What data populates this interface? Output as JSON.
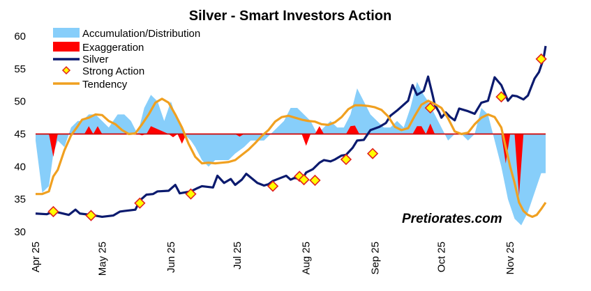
{
  "chart_data": {
    "type": "line",
    "title": "Silver - Smart Investors Action",
    "watermark": "Pretiorates.com",
    "ylim": [
      30,
      60
    ],
    "yticks": [
      30,
      35,
      40,
      45,
      50,
      55,
      60
    ],
    "xlim": [
      0,
      230
    ],
    "xticks": [
      {
        "label": "Apr 25",
        "x": 0
      },
      {
        "label": "May 25",
        "x": 30
      },
      {
        "label": "Jun 25",
        "x": 61
      },
      {
        "label": "Jul 25",
        "x": 91
      },
      {
        "label": "Aug 25",
        "x": 122
      },
      {
        "label": "Sep 25",
        "x": 153
      },
      {
        "label": "Oct 25",
        "x": 183
      },
      {
        "label": "Nov 25",
        "x": 214
      }
    ],
    "baseline": 45,
    "colors": {
      "accumulation": "#87cefa",
      "exaggeration": "#ff0000",
      "silver": "#0b1a6e",
      "tendency": "#f0a020",
      "baseline": "#d00000",
      "marker_fill": "#ffff00",
      "marker_edge": "#e02020"
    },
    "legend": [
      {
        "key": "accumulation",
        "label": "Accumulation/Distribution"
      },
      {
        "key": "exaggeration",
        "label": "Exaggeration"
      },
      {
        "key": "silver",
        "label": "Silver"
      },
      {
        "key": "strong",
        "label": "Strong Action"
      },
      {
        "key": "tendency",
        "label": "Tendency"
      }
    ],
    "series": [
      {
        "name": "Accumulation/Distribution",
        "x": [
          0,
          3,
          6,
          8,
          10,
          13,
          16,
          19,
          21,
          24,
          27,
          30,
          33,
          37,
          40,
          43,
          46,
          49,
          52,
          55,
          58,
          61,
          64,
          67,
          70,
          72,
          75,
          78,
          81,
          84,
          87,
          90,
          94,
          97,
          100,
          103,
          106,
          109,
          112,
          115,
          118,
          121,
          124,
          127,
          130,
          133,
          136,
          139,
          142,
          145,
          148,
          151,
          154,
          157,
          160,
          163,
          166,
          169,
          172,
          175,
          177,
          180,
          183,
          186,
          189,
          192,
          195,
          198,
          201,
          204,
          207,
          210,
          213,
          216,
          219,
          222,
          225,
          228,
          230
        ],
        "values": [
          44,
          36,
          37,
          42,
          44,
          43,
          46,
          47,
          47,
          48,
          48,
          47,
          46,
          48,
          48,
          47,
          45,
          49,
          51,
          50,
          47,
          50,
          47,
          45,
          44,
          43,
          41,
          40,
          41,
          41,
          41,
          42,
          43,
          44,
          44,
          44,
          45,
          46,
          47,
          49,
          49,
          48,
          47,
          45,
          46,
          47,
          46,
          46,
          48,
          52,
          50,
          48,
          47,
          46,
          46,
          47,
          46,
          49,
          53,
          51,
          50,
          48,
          46,
          44,
          45,
          45,
          44,
          45,
          49,
          48,
          44,
          40,
          35,
          32,
          31,
          33,
          36,
          39,
          39
        ]
      },
      {
        "name": "Exaggeration",
        "x": [
          0,
          6,
          8,
          10,
          12,
          14,
          16,
          22,
          24,
          26,
          28,
          30,
          46,
          48,
          50,
          52,
          60,
          62,
          64,
          66,
          68,
          90,
          92,
          94,
          120,
          122,
          124,
          126,
          128,
          130,
          140,
          142,
          144,
          146,
          148,
          170,
          172,
          174,
          176,
          178,
          180,
          182,
          210,
          212,
          214,
          216,
          218,
          220,
          222,
          230
        ],
        "values": [
          45,
          45,
          41.5,
          45,
          45,
          45,
          45,
          45,
          46.2,
          45,
          46.2,
          45,
          45,
          44.8,
          45,
          46.2,
          45,
          44.5,
          45,
          43.5,
          45,
          45,
          44.6,
          45,
          45,
          43.2,
          45,
          45,
          46.2,
          45,
          45,
          46.2,
          46.3,
          45,
          45,
          45,
          46.2,
          46.2,
          45,
          46.6,
          45,
          45,
          45,
          40.5,
          45,
          45,
          35.5,
          45,
          45,
          45
        ]
      },
      {
        "name": "Silver",
        "x": [
          0,
          5,
          8,
          10,
          15,
          18,
          20,
          25,
          30,
          35,
          38,
          40,
          45,
          47,
          50,
          53,
          55,
          60,
          63,
          65,
          70,
          73,
          75,
          80,
          82,
          85,
          88,
          90,
          93,
          95,
          100,
          103,
          105,
          107,
          110,
          113,
          115,
          117,
          120,
          122,
          125,
          128,
          130,
          133,
          135,
          138,
          140,
          143,
          145,
          148,
          151,
          155,
          158,
          160,
          163,
          165,
          168,
          170,
          172,
          175,
          177,
          179,
          180,
          182,
          183,
          185,
          187,
          189,
          191,
          193,
          195,
          198,
          201,
          204,
          207,
          210,
          213,
          215,
          217,
          220,
          222,
          225,
          227,
          229,
          230
        ],
        "values": [
          32.8,
          32.7,
          33.1,
          33.0,
          32.6,
          33.4,
          32.8,
          32.6,
          32.3,
          32.5,
          33.1,
          33.2,
          33.4,
          34.8,
          35.7,
          35.8,
          36.2,
          36.3,
          37.2,
          35.9,
          36.2,
          36.7,
          37.0,
          36.8,
          38.6,
          37.5,
          38.1,
          37.2,
          38.0,
          38.9,
          37.5,
          37.1,
          37.3,
          37.8,
          38.2,
          38.6,
          38.0,
          38.3,
          37.9,
          39.1,
          39.6,
          40.6,
          41.0,
          40.8,
          41.1,
          41.7,
          41.8,
          42.9,
          44.0,
          44.1,
          45.6,
          46.1,
          46.7,
          47.8,
          48.6,
          49.2,
          50.1,
          52.5,
          51.0,
          51.6,
          53.8,
          51.0,
          49.5,
          48.3,
          47.5,
          48.3,
          47.6,
          47.1,
          48.9,
          48.7,
          48.5,
          48.1,
          49.8,
          50.1,
          53.7,
          52.5,
          50.1,
          50.9,
          50.8,
          50.3,
          50.9,
          53.5,
          54.5,
          56.5,
          58.5
        ]
      },
      {
        "name": "Tendency",
        "x": [
          0,
          3,
          6,
          8,
          10,
          13,
          16,
          19,
          21,
          24,
          27,
          30,
          33,
          36,
          39,
          42,
          45,
          48,
          51,
          54,
          57,
          60,
          63,
          66,
          69,
          72,
          75,
          78,
          81,
          84,
          87,
          90,
          93,
          96,
          99,
          102,
          105,
          108,
          111,
          114,
          117,
          120,
          123,
          126,
          129,
          132,
          135,
          138,
          141,
          144,
          147,
          150,
          153,
          156,
          159,
          162,
          165,
          168,
          171,
          174,
          177,
          180,
          183,
          186,
          189,
          192,
          195,
          198,
          201,
          204,
          207,
          210,
          212,
          214,
          216,
          218,
          220,
          222,
          224,
          226,
          228,
          230
        ],
        "values": [
          35.8,
          35.8,
          36.2,
          38.5,
          39.5,
          42.5,
          44.8,
          46.2,
          47.2,
          47.5,
          48.0,
          47.9,
          47.0,
          46.5,
          45.6,
          45.0,
          45.1,
          46.5,
          48.0,
          49.8,
          50.4,
          49.8,
          48.0,
          46.0,
          43.5,
          41.5,
          40.5,
          40.6,
          40.5,
          40.6,
          40.7,
          41.0,
          41.8,
          42.6,
          43.6,
          44.7,
          45.6,
          46.9,
          47.6,
          47.8,
          47.5,
          47.2,
          47.0,
          46.9,
          46.5,
          46.4,
          46.8,
          47.6,
          48.8,
          49.4,
          49.4,
          49.3,
          49.1,
          48.7,
          47.7,
          46.1,
          45.6,
          45.9,
          47.8,
          49.5,
          50.1,
          49.6,
          49.0,
          47.4,
          45.4,
          45.0,
          45.2,
          46.5,
          47.5,
          48.0,
          47.6,
          46.0,
          43.0,
          40.0,
          37.5,
          34.5,
          33.2,
          32.6,
          32.3,
          32.6,
          33.5,
          34.5
        ]
      }
    ],
    "strong_action": [
      {
        "x": 8,
        "y": 33.1
      },
      {
        "x": 25,
        "y": 32.5
      },
      {
        "x": 47,
        "y": 34.4
      },
      {
        "x": 70,
        "y": 35.8
      },
      {
        "x": 107,
        "y": 37.0
      },
      {
        "x": 119,
        "y": 38.5
      },
      {
        "x": 121,
        "y": 38.0
      },
      {
        "x": 126,
        "y": 37.9
      },
      {
        "x": 140,
        "y": 41.1
      },
      {
        "x": 152,
        "y": 42.0
      },
      {
        "x": 178,
        "y": 49.0
      },
      {
        "x": 210,
        "y": 50.7
      },
      {
        "x": 228,
        "y": 56.5
      }
    ]
  }
}
